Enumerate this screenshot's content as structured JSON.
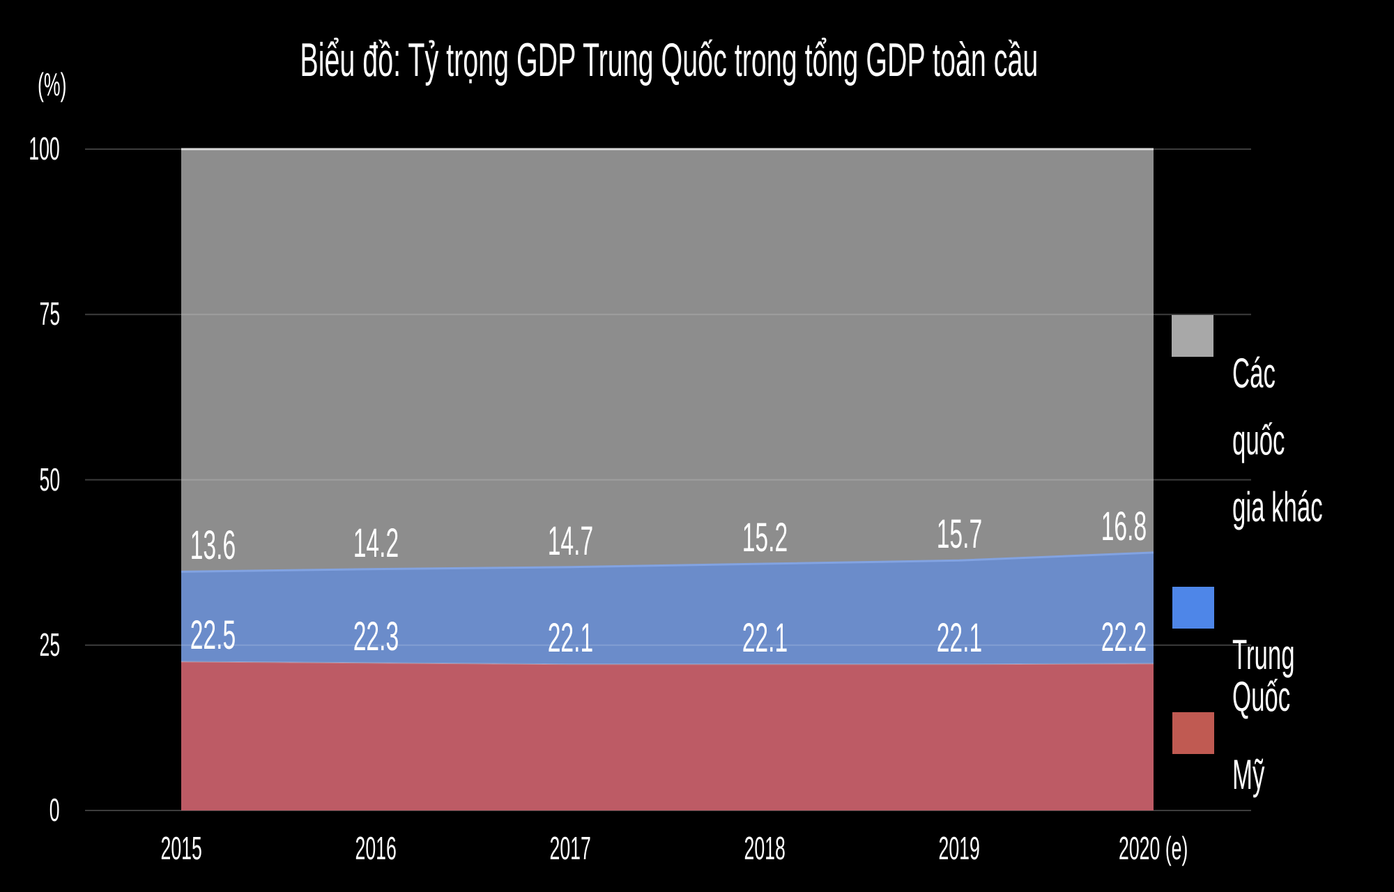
{
  "title": "Biểu đồ: Tỷ trọng GDP Trung Quốc trong tổng GDP toàn cầu",
  "y_axis": {
    "unit_label": "(%)",
    "ticks": [
      100,
      75,
      50,
      25,
      0
    ]
  },
  "x_axis": {
    "labels": [
      "2015",
      "2016",
      "2017",
      "2018",
      "2019",
      "2020 (e)"
    ]
  },
  "chart_data": {
    "type": "area",
    "stacked": true,
    "title": "Biểu đồ: Tỷ trọng GDP Trung Quốc trong tổng GDP toàn cầu",
    "ylabel": "(%)",
    "ylim": [
      0,
      100
    ],
    "grid": true,
    "legend_position": "right",
    "categories": [
      "2015",
      "2016",
      "2017",
      "2018",
      "2019",
      "2020 (e)"
    ],
    "series": [
      {
        "name": "Mỹ",
        "color": "#bd5b65",
        "labels_shown": true,
        "values": [
          22.5,
          22.3,
          22.1,
          22.1,
          22.1,
          22.2
        ]
      },
      {
        "name": "Trung Quốc",
        "color": "#6b8cca",
        "labels_shown": true,
        "values": [
          13.6,
          14.2,
          14.7,
          15.2,
          15.7,
          16.8
        ]
      },
      {
        "name": "Các quốc gia khác",
        "color": "#8d8d8d",
        "labels_shown": false,
        "values": [
          63.9,
          63.5,
          63.2,
          62.7,
          62.2,
          61.0
        ]
      }
    ]
  },
  "legend": {
    "items": [
      {
        "label": "Các quốc\ngia khác",
        "color": "#a8a8a8"
      },
      {
        "label": "Trung Quốc",
        "color": "#4e86e8"
      },
      {
        "label": "Mỹ",
        "color": "#c05a52"
      }
    ]
  },
  "colors": {
    "background": "#000000",
    "gridline": "#3d3d3d",
    "grid_overlay": "rgba(255,255,255,0.16)",
    "top_line": "#d8d8d8",
    "china_edge": "#82a3e2",
    "us_edge": "rgba(255,255,255,0.25)",
    "text": "#ffffff"
  }
}
